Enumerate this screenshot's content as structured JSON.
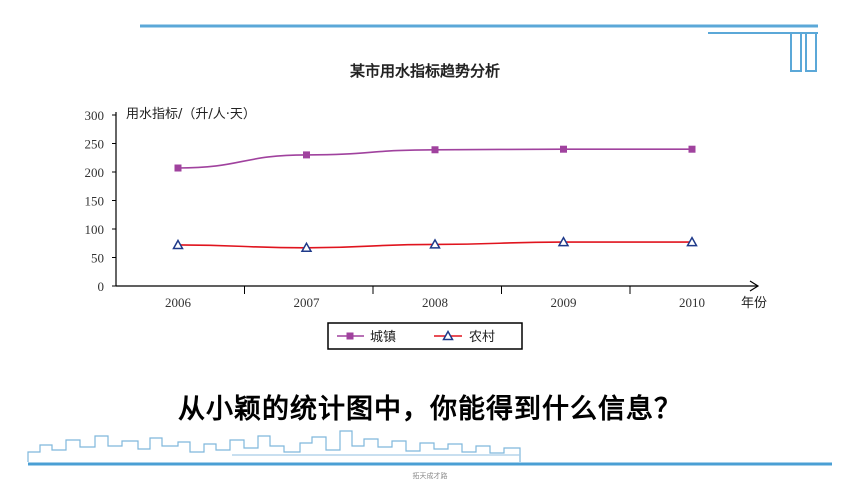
{
  "slide": {
    "question": "从小颖的统计图中，你能得到什么信息？",
    "footer_caption": "拓天成才路",
    "colors": {
      "accent_blue": "#5ba8d8",
      "skyline_blue": "#7fb8dc"
    }
  },
  "chart_data": {
    "type": "line",
    "title": "某市用水指标趋势分析",
    "ylabel": "用水指标/（升/人·天）",
    "xlabel": "年份",
    "categories": [
      "2006",
      "2007",
      "2008",
      "2009",
      "2010"
    ],
    "ylim": [
      0,
      300
    ],
    "yticks": [
      "0",
      "50",
      "100",
      "150",
      "200",
      "250",
      "300"
    ],
    "grid": false,
    "legend_position": "bottom-center",
    "series": [
      {
        "name": "城镇",
        "values": [
          207,
          230,
          239,
          240,
          240
        ],
        "color": "#a0429e",
        "marker": "square"
      },
      {
        "name": "农村",
        "values": [
          72,
          67,
          73,
          77,
          77
        ],
        "color": "#e0141e",
        "marker": "triangle"
      }
    ]
  }
}
